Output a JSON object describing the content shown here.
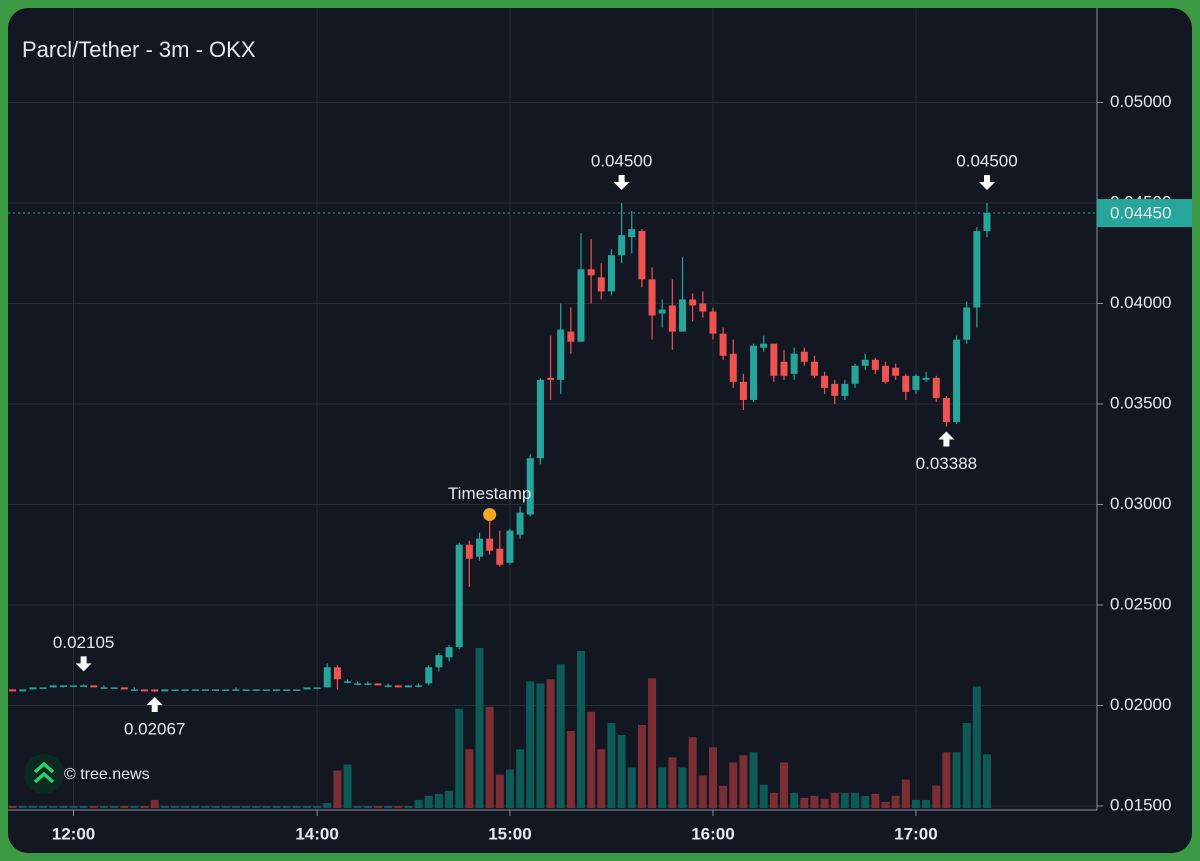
{
  "chart_data": {
    "type": "candlestick",
    "title": "Parcl/Tether - 3m - OKX",
    "up_color": "#26a69a",
    "down_color": "#ef5350",
    "up_volume_color": "#0e5a56",
    "down_volume_color": "#7b2f35",
    "grid": true,
    "categories": [
      null,
      null,
      null,
      null,
      null,
      null,
      "12:00",
      null,
      null,
      null,
      null,
      null,
      null,
      null,
      null,
      null,
      null,
      null,
      null,
      null,
      null,
      null,
      null,
      null,
      null,
      null,
      null,
      null,
      null,
      null,
      "14:00",
      null,
      null,
      null,
      null,
      null,
      null,
      null,
      null,
      null,
      null,
      null,
      null,
      null,
      null,
      null,
      null,
      null,
      null,
      "15:00",
      null,
      null,
      null,
      null,
      null,
      null,
      null,
      null,
      null,
      null,
      null,
      null,
      null,
      null,
      null,
      null,
      null,
      null,
      null,
      "16:00",
      null,
      null,
      null,
      null,
      null,
      null,
      null,
      null,
      null,
      null,
      null,
      null,
      null,
      null,
      null,
      null,
      null,
      null,
      null,
      "17:00",
      null,
      null,
      null,
      null,
      null,
      null,
      null
    ],
    "open": [
      0.0208,
      0.0207,
      0.0208,
      0.0209,
      0.0209,
      0.021,
      0.021,
      0.021,
      0.021,
      0.0209,
      0.0209,
      0.0209,
      0.0208,
      0.0208,
      0.0208,
      0.0207,
      0.0208,
      0.0208,
      0.0208,
      0.0208,
      0.0208,
      0.0208,
      0.0208,
      0.0208,
      0.0208,
      0.0208,
      0.0208,
      0.0208,
      0.0208,
      0.0208,
      0.0209,
      0.0209,
      0.0219,
      0.0212,
      0.0211,
      0.0211,
      0.0211,
      0.021,
      0.021,
      0.0209,
      0.021,
      0.0211,
      0.0219,
      0.0224,
      0.0229,
      0.028,
      0.0274,
      0.0283,
      0.0278,
      0.0271,
      0.0285,
      0.0295,
      0.0323,
      0.0363,
      0.0362,
      0.0386,
      0.0381,
      0.0417,
      0.0413,
      0.0406,
      0.0424,
      0.0433,
      0.0436,
      0.0412,
      0.0395,
      0.0399,
      0.0386,
      0.0402,
      0.04,
      0.0396,
      0.0385,
      0.0375,
      0.0361,
      0.0352,
      0.0378,
      0.038,
      0.0371,
      0.0365,
      0.0376,
      0.0371,
      0.0364,
      0.036,
      0.0354,
      0.036,
      0.0369,
      0.0372,
      0.0369,
      0.0368,
      0.0364,
      0.0357,
      0.0362,
      0.0363,
      0.0353,
      0.0341,
      0.0382,
      0.0398,
      0.0436
    ],
    "high": [
      0.0208,
      0.0208,
      0.0209,
      0.0209,
      0.021,
      0.021,
      0.021,
      0.02105,
      0.021,
      0.021,
      0.0209,
      0.0209,
      0.0209,
      0.0208,
      0.0208,
      0.0208,
      0.0208,
      0.0208,
      0.0208,
      0.0208,
      0.0208,
      0.0208,
      0.0209,
      0.0208,
      0.0208,
      0.0208,
      0.0208,
      0.0208,
      0.0208,
      0.0209,
      0.0209,
      0.0221,
      0.022,
      0.0213,
      0.0212,
      0.0212,
      0.0211,
      0.0211,
      0.021,
      0.021,
      0.0211,
      0.022,
      0.0226,
      0.023,
      0.0281,
      0.0282,
      0.0286,
      0.0293,
      0.0287,
      0.0288,
      0.0299,
      0.0325,
      0.0363,
      0.0384,
      0.04,
      0.0398,
      0.0435,
      0.0432,
      0.042,
      0.0427,
      0.045,
      0.0446,
      0.0437,
      0.0418,
      0.0402,
      0.0412,
      0.0423,
      0.0405,
      0.0406,
      0.0398,
      0.0388,
      0.0382,
      0.0365,
      0.038,
      0.0384,
      0.038,
      0.0377,
      0.0378,
      0.0378,
      0.0374,
      0.0366,
      0.0362,
      0.0362,
      0.037,
      0.0375,
      0.0373,
      0.0371,
      0.037,
      0.0365,
      0.0365,
      0.0366,
      0.0364,
      0.0354,
      0.0384,
      0.0401,
      0.0438,
      0.045
    ],
    "low": [
      0.0207,
      0.0207,
      0.0208,
      0.0208,
      0.0209,
      0.0209,
      0.021,
      0.021,
      0.0209,
      0.0209,
      0.0209,
      0.0208,
      0.0208,
      0.0207,
      0.02067,
      0.0207,
      0.0208,
      0.0207,
      0.0208,
      0.0208,
      0.0208,
      0.0208,
      0.0208,
      0.0208,
      0.0208,
      0.0208,
      0.0207,
      0.0208,
      0.0208,
      0.0208,
      0.0208,
      0.0209,
      0.0208,
      0.0211,
      0.021,
      0.021,
      0.021,
      0.0209,
      0.0209,
      0.0209,
      0.0209,
      0.021,
      0.0217,
      0.0222,
      0.0228,
      0.0259,
      0.0272,
      0.0275,
      0.0269,
      0.027,
      0.0283,
      0.0294,
      0.032,
      0.0352,
      0.0355,
      0.0375,
      0.0381,
      0.04,
      0.0402,
      0.0404,
      0.042,
      0.0425,
      0.0408,
      0.0382,
      0.0388,
      0.0377,
      0.0386,
      0.0391,
      0.0393,
      0.0382,
      0.0372,
      0.0358,
      0.0347,
      0.0351,
      0.0376,
      0.0361,
      0.0362,
      0.0362,
      0.0369,
      0.0363,
      0.0355,
      0.035,
      0.0352,
      0.0358,
      0.0367,
      0.0365,
      0.036,
      0.0362,
      0.0352,
      0.0355,
      0.0361,
      0.0351,
      0.03388,
      0.034,
      0.038,
      0.0388,
      0.0433
    ],
    "close": [
      0.0207,
      0.0208,
      0.0209,
      0.0209,
      0.021,
      0.021,
      0.021,
      0.021,
      0.0209,
      0.0209,
      0.0209,
      0.0208,
      0.0208,
      0.0207,
      0.0207,
      0.0208,
      0.0208,
      0.0208,
      0.0208,
      0.0208,
      0.0208,
      0.0208,
      0.0208,
      0.0208,
      0.0208,
      0.0208,
      0.0208,
      0.0208,
      0.0208,
      0.0209,
      0.0209,
      0.0219,
      0.0213,
      0.0212,
      0.0211,
      0.0211,
      0.021,
      0.021,
      0.0209,
      0.021,
      0.021,
      0.0219,
      0.0225,
      0.0229,
      0.028,
      0.0273,
      0.0283,
      0.0277,
      0.027,
      0.0287,
      0.0296,
      0.0323,
      0.0362,
      0.0362,
      0.0387,
      0.0381,
      0.0417,
      0.0414,
      0.0406,
      0.0424,
      0.0434,
      0.0437,
      0.0412,
      0.0394,
      0.0397,
      0.0386,
      0.0402,
      0.0399,
      0.0396,
      0.0385,
      0.0374,
      0.0361,
      0.0352,
      0.0379,
      0.038,
      0.0364,
      0.0364,
      0.0375,
      0.0371,
      0.0364,
      0.0358,
      0.0354,
      0.036,
      0.0369,
      0.0372,
      0.0367,
      0.0361,
      0.0364,
      0.0356,
      0.0364,
      0.0363,
      0.0353,
      0.0341,
      0.0382,
      0.0398,
      0.0436,
      0.0445
    ],
    "volume": [
      2,
      2,
      2,
      2,
      2,
      2,
      2,
      2,
      2,
      2,
      2,
      2,
      2,
      2,
      8,
      2,
      2,
      2,
      2,
      2,
      2,
      2,
      2,
      2,
      2,
      2,
      2,
      2,
      2,
      2,
      2,
      5,
      37,
      43,
      2,
      2,
      2,
      2,
      2,
      2,
      8,
      12,
      14,
      17,
      98,
      58,
      158,
      100,
      33,
      38,
      58,
      125,
      123,
      127,
      142,
      76,
      155,
      95,
      58,
      84,
      72,
      40,
      82,
      128,
      40,
      50,
      40,
      70,
      32,
      60,
      22,
      45,
      52,
      55,
      23,
      15,
      45,
      15,
      10,
      12,
      9,
      15,
      15,
      15,
      12,
      14,
      6,
      12,
      28,
      8,
      8,
      22,
      55,
      55,
      84,
      120,
      53
    ],
    "ylim": [
      0.0148,
      0.0547
    ],
    "yticks": [
      {
        "value": 0.015,
        "label": "0.01500"
      },
      {
        "value": 0.02,
        "label": "0.02000"
      },
      {
        "value": 0.025,
        "label": "0.02500"
      },
      {
        "value": 0.03,
        "label": "0.03000"
      },
      {
        "value": 0.035,
        "label": "0.03500"
      },
      {
        "value": 0.04,
        "label": "0.04000"
      },
      {
        "value": 0.045,
        "label": "0.04500"
      },
      {
        "value": 0.05,
        "label": "0.05000"
      }
    ],
    "last_price": {
      "value": 0.0445,
      "label": "0.04450"
    },
    "annotations": [
      {
        "label": "0.02105",
        "value": 0.02105,
        "index": 7,
        "side": "high"
      },
      {
        "label": "0.02067",
        "value": 0.02067,
        "index": 14,
        "side": "low"
      },
      {
        "label": "0.04500",
        "value": 0.045,
        "index": 60,
        "side": "high"
      },
      {
        "label": "0.03388",
        "value": 0.03388,
        "index": 92,
        "side": "low"
      },
      {
        "label": "0.04500",
        "value": 0.045,
        "index": 96,
        "side": "high"
      }
    ],
    "marker": {
      "label": "Timestamp",
      "value": 0.0295,
      "index": 47,
      "color": "#f5a623"
    },
    "watermark": "© tree.news"
  }
}
